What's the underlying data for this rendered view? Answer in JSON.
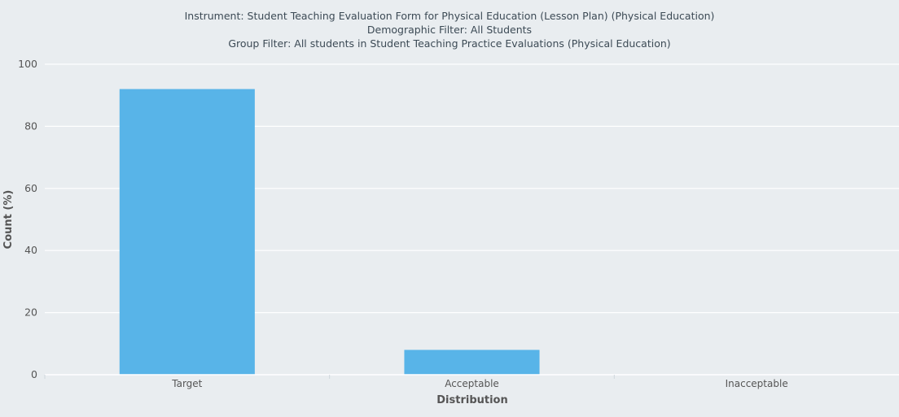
{
  "chart_data": {
    "type": "bar",
    "title_lines": [
      "Instrument: Student Teaching Evaluation Form for Physical Education (Lesson Plan) (Physical Education)",
      "Demographic Filter: All Students",
      "Group Filter: All students in Student Teaching Practice Evaluations (Physical Education)"
    ],
    "xlabel": "Distribution",
    "ylabel": "Count (%)",
    "categories": [
      "Target",
      "Acceptable",
      "Inacceptable"
    ],
    "values": [
      92,
      8,
      0
    ],
    "ylim": [
      0,
      100
    ],
    "yticks": [
      0,
      20,
      40,
      60,
      80,
      100
    ],
    "grid": true,
    "bar_color": "#58b4e8"
  }
}
